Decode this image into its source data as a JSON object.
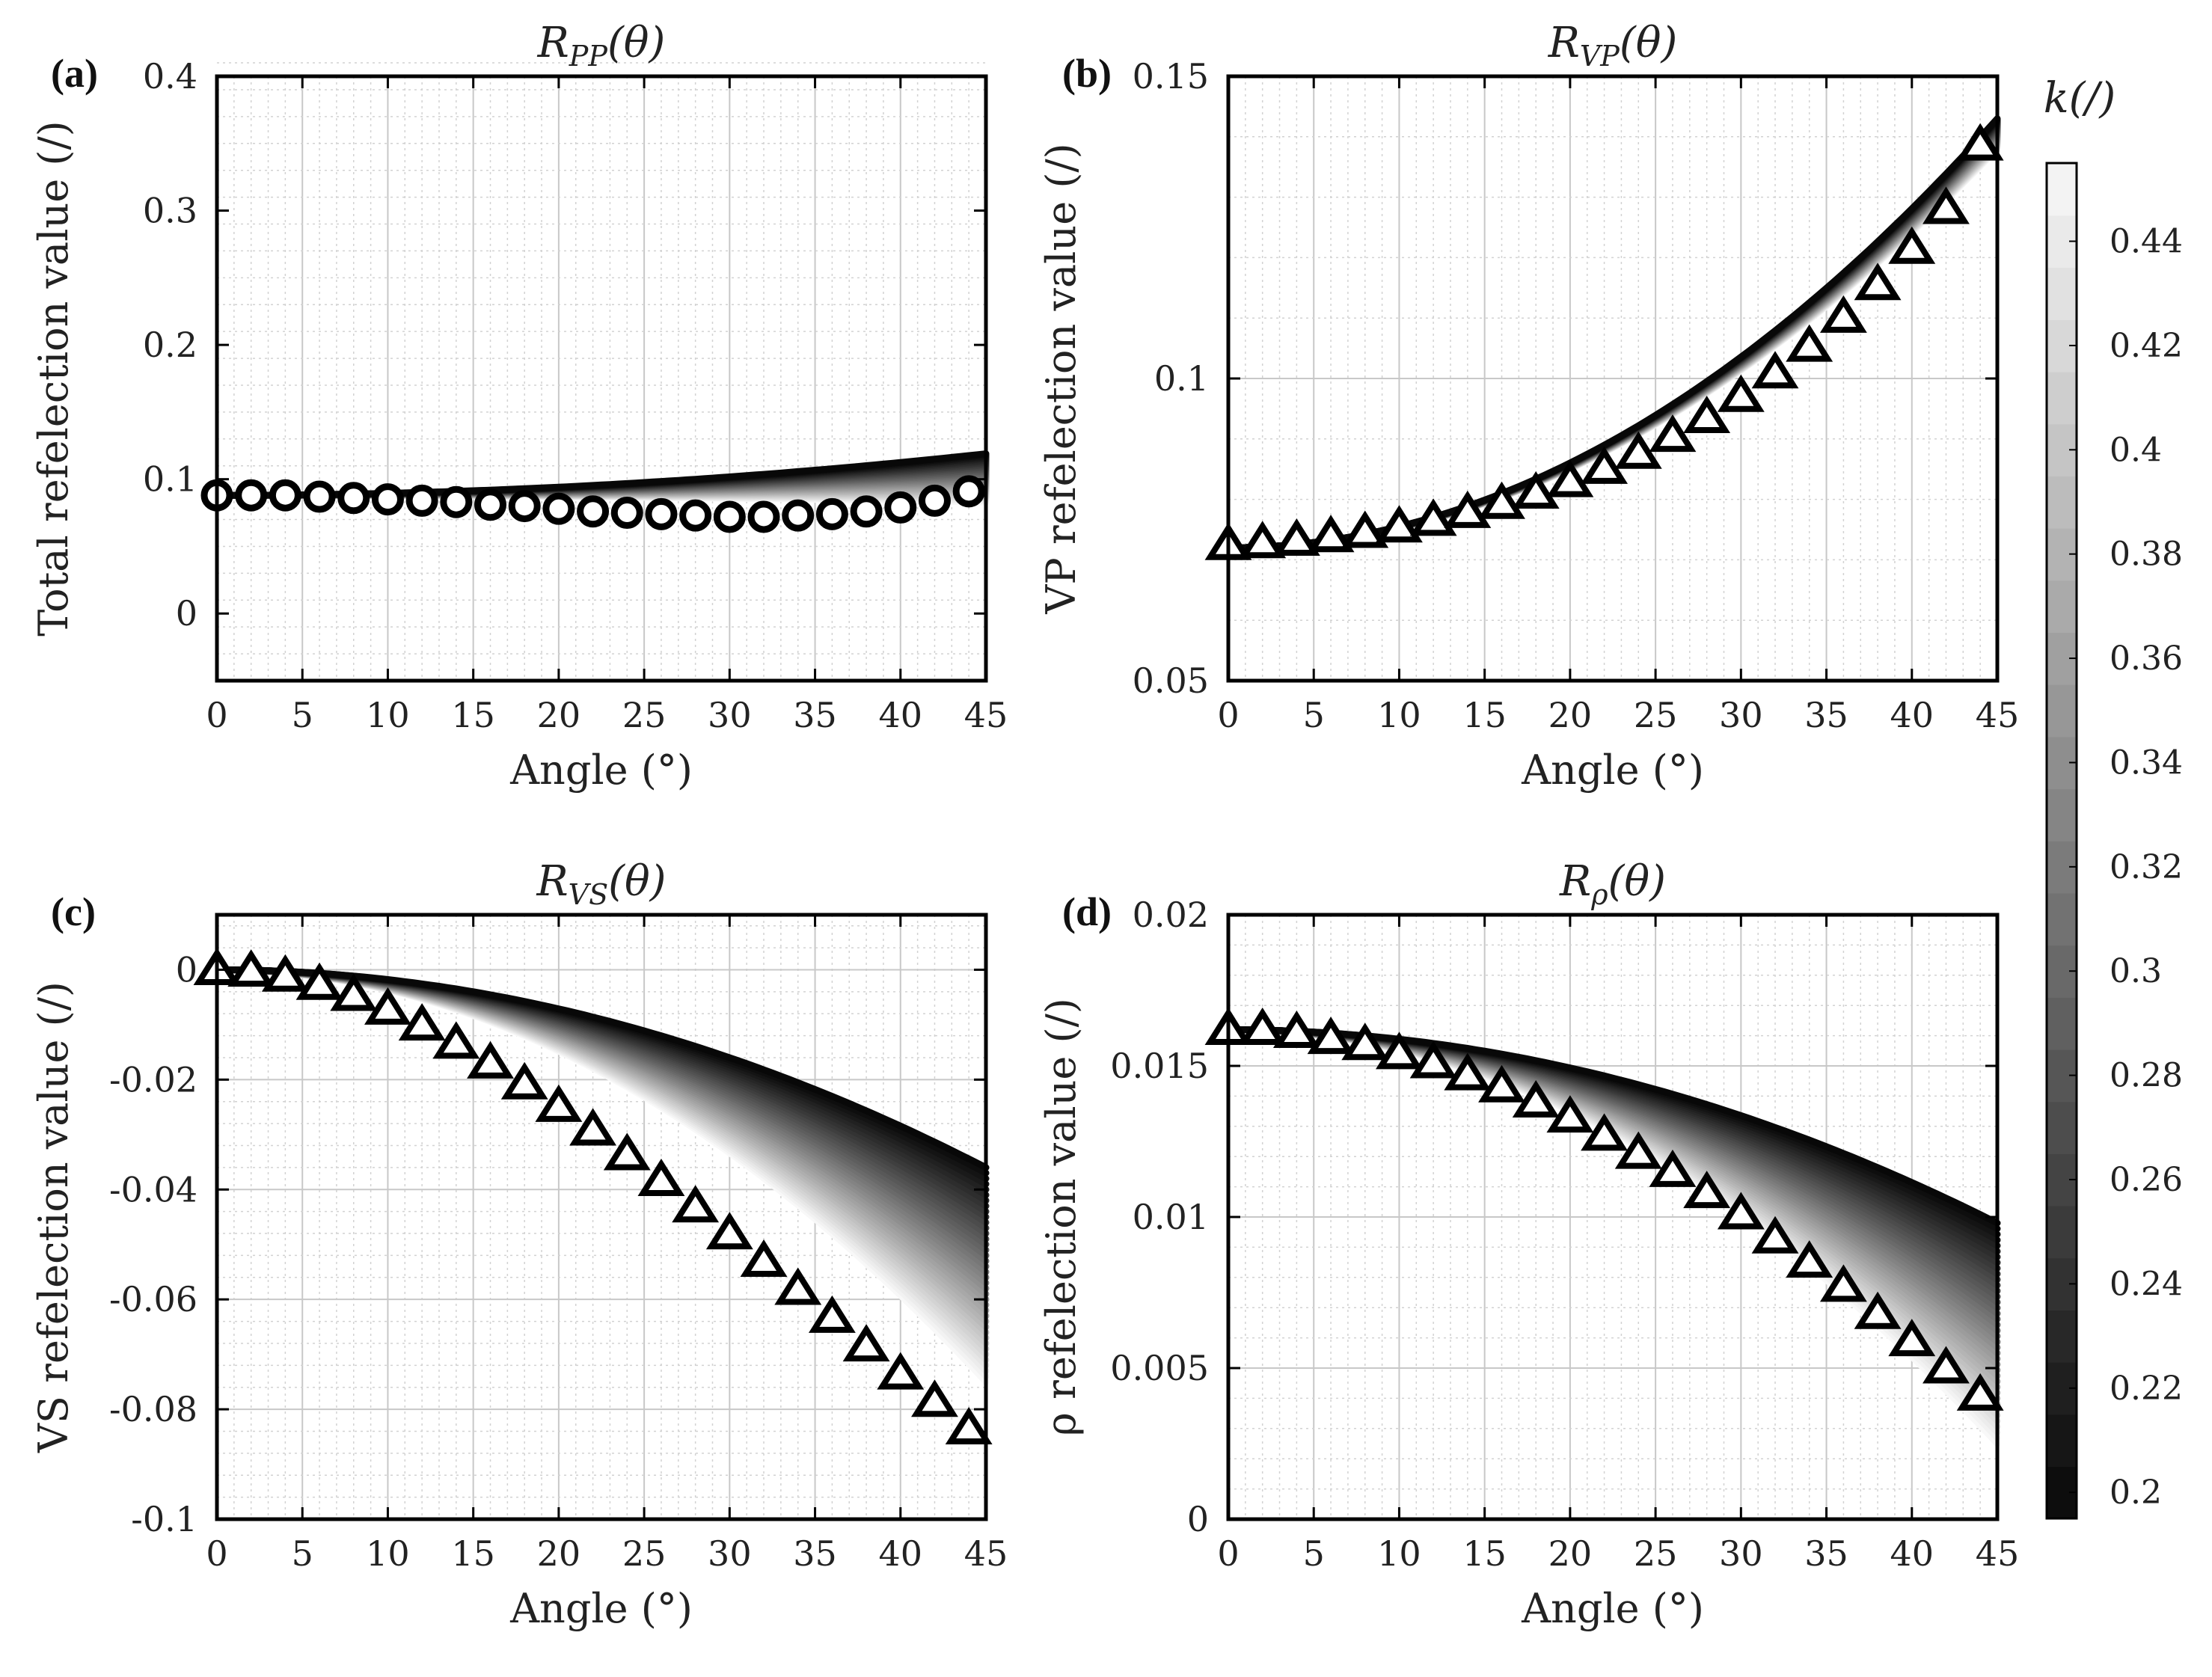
{
  "chart_data": [
    {
      "id": "a",
      "type": "line",
      "panel_label": "(a)",
      "title": "R_PP(θ)",
      "title_main": "R",
      "title_sub": "PP",
      "title_tail": "(θ)",
      "xlabel": "Angle (°)",
      "ylabel": "Total refelection value (/)",
      "xlim": [
        0,
        45
      ],
      "ylim": [
        -0.05,
        0.4
      ],
      "xticks": [
        0,
        5,
        10,
        15,
        20,
        25,
        30,
        35,
        40,
        45
      ],
      "xtick_labels": [
        "0",
        "5",
        "10",
        "15",
        "20",
        "25",
        "30",
        "35",
        "40",
        "45"
      ],
      "yticks": [
        0,
        0.1,
        0.2,
        0.3,
        0.4
      ],
      "ytick_labels": [
        "0",
        "0.1",
        "0.2",
        "0.3",
        "0.4"
      ],
      "grid": true,
      "marker": "circle",
      "band_start": 0.088,
      "band_top_end": 0.119,
      "band_bottom_end": 0.083,
      "x": [
        0,
        2,
        4,
        6,
        8,
        10,
        12,
        14,
        16,
        18,
        20,
        22,
        24,
        26,
        28,
        30,
        32,
        34,
        36,
        38,
        40,
        42,
        44
      ],
      "marker_values": [
        0.088,
        0.088,
        0.088,
        0.087,
        0.086,
        0.085,
        0.084,
        0.083,
        0.081,
        0.08,
        0.078,
        0.076,
        0.075,
        0.074,
        0.073,
        0.072,
        0.072,
        0.073,
        0.074,
        0.076,
        0.079,
        0.084,
        0.091
      ]
    },
    {
      "id": "b",
      "type": "line",
      "panel_label": "(b)",
      "title": "R_VP(θ)",
      "title_main": "R",
      "title_sub": "VP",
      "title_tail": "(θ)",
      "xlabel": "Angle (°)",
      "ylabel": "VP refelection value (/)",
      "xlim": [
        0,
        45
      ],
      "ylim": [
        0.05,
        0.15
      ],
      "xticks": [
        0,
        5,
        10,
        15,
        20,
        25,
        30,
        35,
        40,
        45
      ],
      "xtick_labels": [
        "0",
        "5",
        "10",
        "15",
        "20",
        "25",
        "30",
        "35",
        "40",
        "45"
      ],
      "yticks": [
        0.05,
        0.1,
        0.15
      ],
      "ytick_labels": [
        "0.05",
        "0.1",
        "0.15"
      ],
      "grid": true,
      "marker": "triangle",
      "band_start": 0.072,
      "band_top_end": 0.143,
      "band_bottom_end": 0.138,
      "x": [
        0,
        2,
        4,
        6,
        8,
        10,
        12,
        14,
        16,
        18,
        20,
        22,
        24,
        26,
        28,
        30,
        32,
        34,
        36,
        38,
        40,
        42,
        44
      ],
      "marker_values": [
        0.0725,
        0.0728,
        0.0732,
        0.0738,
        0.0745,
        0.0754,
        0.0765,
        0.0778,
        0.0793,
        0.081,
        0.0829,
        0.0851,
        0.0876,
        0.0904,
        0.0935,
        0.097,
        0.1009,
        0.1053,
        0.1101,
        0.1155,
        0.1215,
        0.1281,
        0.1386
      ]
    },
    {
      "id": "c",
      "type": "line",
      "panel_label": "(c)",
      "title": "R_VS(θ)",
      "title_main": "R",
      "title_sub": "VS",
      "title_tail": "(θ)",
      "xlabel": "Angle (°)",
      "ylabel": "VS refelection value (/)",
      "xlim": [
        0,
        45
      ],
      "ylim": [
        -0.1,
        0.01
      ],
      "xticks": [
        0,
        5,
        10,
        15,
        20,
        25,
        30,
        35,
        40,
        45
      ],
      "xtick_labels": [
        "0",
        "5",
        "10",
        "15",
        "20",
        "25",
        "30",
        "35",
        "40",
        "45"
      ],
      "yticks": [
        -0.1,
        -0.08,
        -0.06,
        -0.04,
        -0.02,
        0
      ],
      "ytick_labels": [
        "-0.1",
        "-0.08",
        "-0.06",
        "-0.04",
        "-0.02",
        "0"
      ],
      "grid": true,
      "marker": "triangle",
      "band_start": 0.0,
      "band_top_end": -0.036,
      "band_bottom_end": -0.075,
      "x": [
        0,
        2,
        4,
        6,
        8,
        10,
        12,
        14,
        16,
        18,
        20,
        22,
        24,
        26,
        28,
        30,
        32,
        34,
        36,
        38,
        40,
        42,
        44
      ],
      "marker_values": [
        0.0,
        -0.0003,
        -0.0012,
        -0.0027,
        -0.0047,
        -0.0072,
        -0.0101,
        -0.0134,
        -0.017,
        -0.0208,
        -0.0249,
        -0.0292,
        -0.0337,
        -0.0384,
        -0.0432,
        -0.0481,
        -0.0531,
        -0.0582,
        -0.0633,
        -0.0685,
        -0.0736,
        -0.0786,
        -0.0836
      ]
    },
    {
      "id": "d",
      "type": "line",
      "panel_label": "(d)",
      "title": "R_ρ(θ)",
      "title_main": "R",
      "title_sub": "ρ",
      "title_tail": "(θ)",
      "xlabel": "Angle (°)",
      "ylabel": "ρ refelection value (/)",
      "xlim": [
        0,
        45
      ],
      "ylim": [
        0,
        0.02
      ],
      "xticks": [
        0,
        5,
        10,
        15,
        20,
        25,
        30,
        35,
        40,
        45
      ],
      "xtick_labels": [
        "0",
        "5",
        "10",
        "15",
        "20",
        "25",
        "30",
        "35",
        "40",
        "45"
      ],
      "yticks": [
        0,
        0.005,
        0.01,
        0.015,
        0.02
      ],
      "ytick_labels": [
        "0",
        "0.005",
        "0.01",
        "0.015",
        "0.02"
      ],
      "grid": true,
      "marker": "triangle",
      "band_start": 0.0162,
      "band_top_end": 0.0098,
      "band_bottom_end": 0.0025,
      "x": [
        0,
        2,
        4,
        6,
        8,
        10,
        12,
        14,
        16,
        18,
        20,
        22,
        24,
        26,
        28,
        30,
        32,
        34,
        36,
        38,
        40,
        42,
        44
      ],
      "marker_values": [
        0.0162,
        0.0162,
        0.0161,
        0.0159,
        0.0157,
        0.0154,
        0.0151,
        0.0147,
        0.0143,
        0.0138,
        0.0133,
        0.0127,
        0.0121,
        0.0115,
        0.0108,
        0.0101,
        0.0093,
        0.0085,
        0.0077,
        0.0068,
        0.0059,
        0.005,
        0.0041
      ]
    }
  ],
  "colorbar": {
    "title": "k(/)",
    "range": [
      0.195,
      0.455
    ],
    "ticks": [
      0.2,
      0.22,
      0.24,
      0.26,
      0.28,
      0.3,
      0.32,
      0.34,
      0.36,
      0.38,
      0.4,
      0.42,
      0.44
    ],
    "tick_labels": [
      "0.2",
      "0.22",
      "0.24",
      "0.26",
      "0.28",
      "0.3",
      "0.32",
      "0.34",
      "0.36",
      "0.38",
      "0.4",
      "0.42",
      "0.44"
    ],
    "colormap": "gray",
    "levels": 26
  }
}
